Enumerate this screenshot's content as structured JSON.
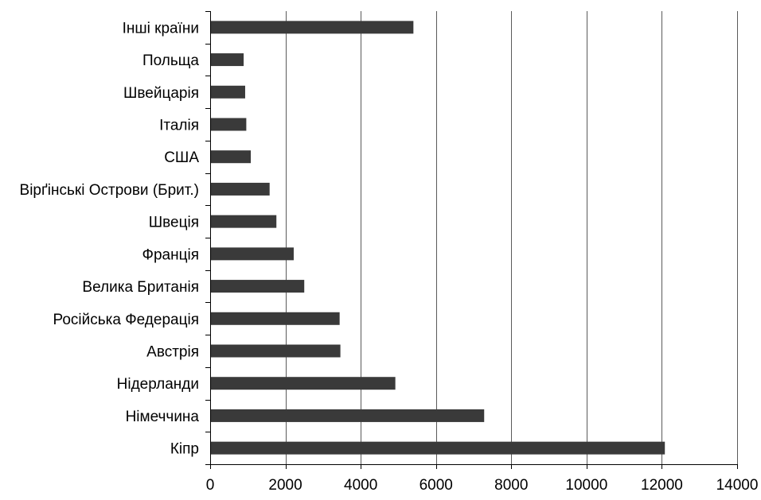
{
  "chart_data": {
    "type": "bar",
    "orientation": "horizontal",
    "categories": [
      "Кіпр",
      "Німеччина",
      "Нідерланди",
      "Австрія",
      "Російська Федерація",
      "Велика Британія",
      "Франція",
      "Швеція",
      "Вірґінські Острови (Брит.)",
      "США",
      "Італія",
      "Швейцарія",
      "Польща",
      "Інші країни"
    ],
    "values": [
      12080,
      7280,
      4920,
      3460,
      3440,
      2500,
      2220,
      1760,
      1580,
      1080,
      960,
      930,
      890,
      5400
    ],
    "xlim": [
      0,
      14000
    ],
    "xticks": [
      0,
      2000,
      4000,
      6000,
      8000,
      10000,
      12000,
      14000
    ],
    "xtick_labels": [
      "0",
      "2000",
      "4000",
      "6000",
      "8000",
      "10000",
      "12000",
      "14000"
    ],
    "grid": true,
    "legend": "none",
    "title": "",
    "xlabel": "",
    "ylabel": ""
  },
  "colors": {
    "bar": "#3a3a3a",
    "axis": "#000000",
    "grid": "#5a5a5a",
    "text": "#000000"
  }
}
